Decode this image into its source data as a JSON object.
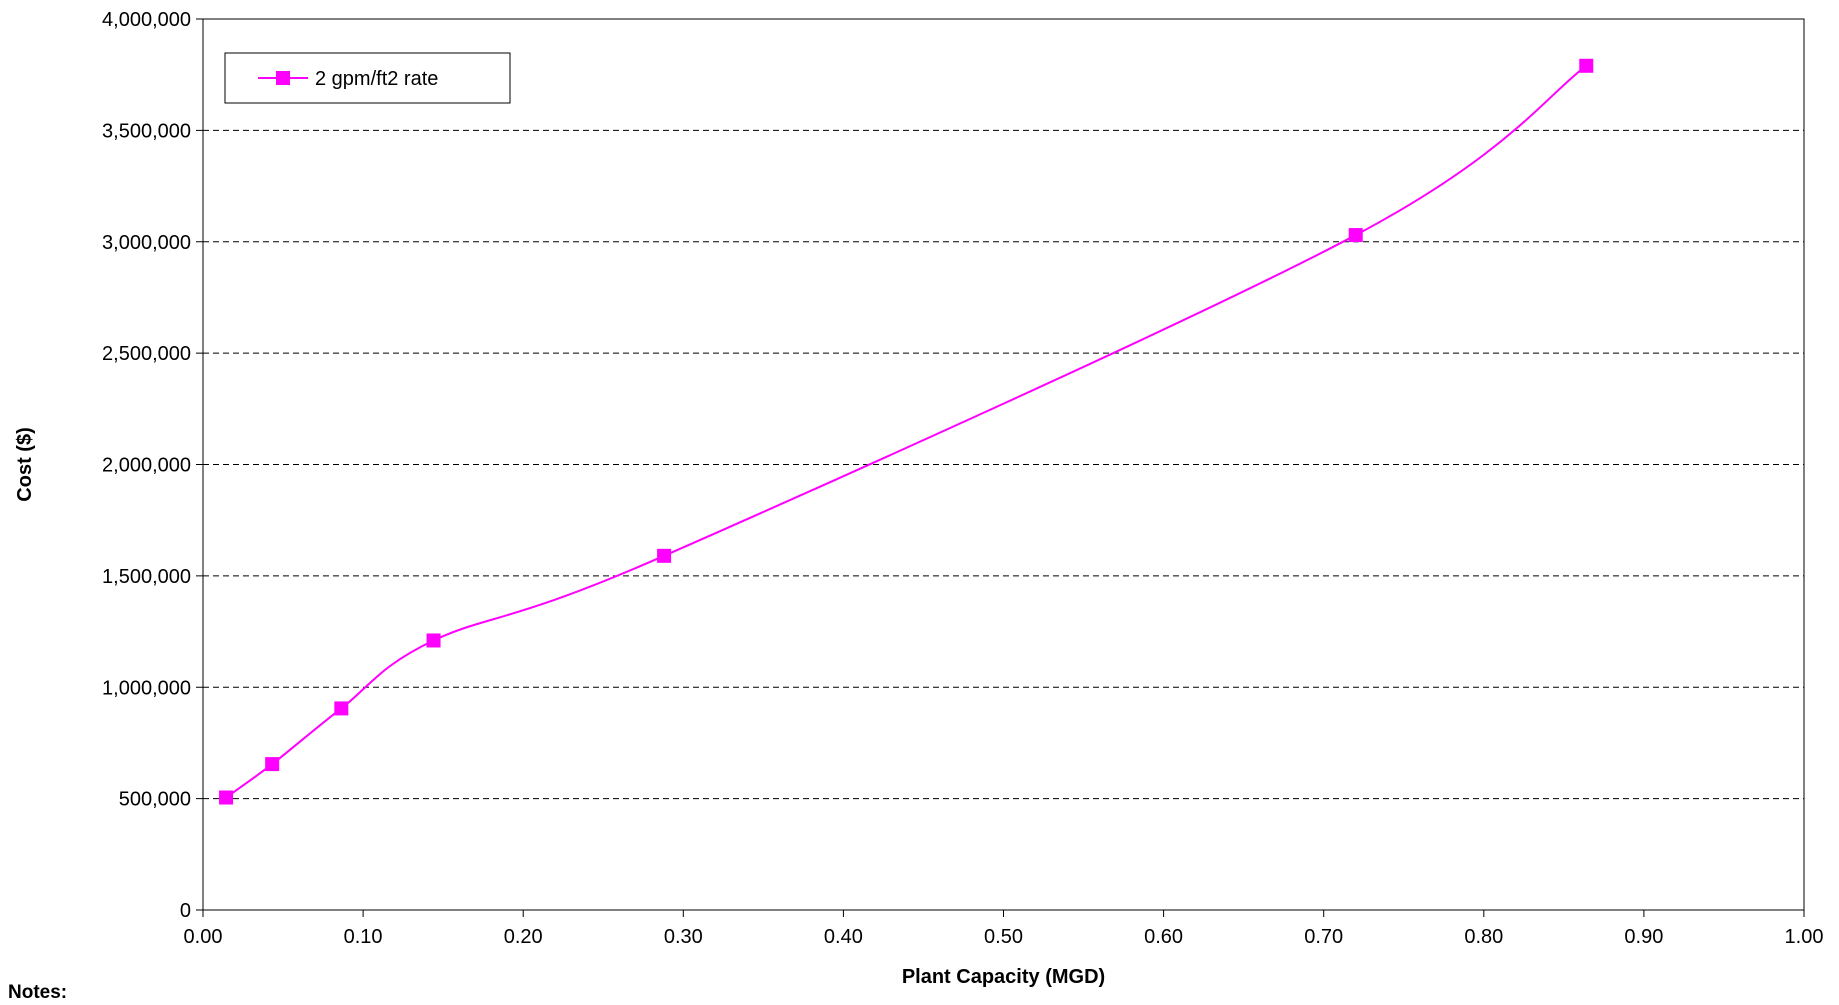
{
  "notes_label": "Notes:",
  "chart_data": {
    "type": "line",
    "title": "",
    "xlabel": "Plant Capacity (MGD)",
    "ylabel": "Cost ($)",
    "xlim": [
      0,
      1.0
    ],
    "ylim": [
      0,
      4000000
    ],
    "x_ticks": [
      "0.00",
      "0.10",
      "0.20",
      "0.30",
      "0.40",
      "0.50",
      "0.60",
      "0.70",
      "0.80",
      "0.90",
      "1.00"
    ],
    "y_ticks": [
      "0",
      "500,000",
      "1,000,000",
      "1,500,000",
      "2,000,000",
      "2,500,000",
      "3,000,000",
      "3,500,000",
      "4,000,000"
    ],
    "grid": "horizontal dashed",
    "legend_position": "top-left",
    "series": [
      {
        "name": "2 gpm/ft2 rate",
        "color": "#FF00FF",
        "marker": "square",
        "smooth": true,
        "x": [
          0.0144,
          0.0432,
          0.0864,
          0.144,
          0.288,
          0.72,
          0.864
        ],
        "y": [
          505000,
          655000,
          905000,
          1210000,
          1590000,
          3030000,
          3790000
        ]
      }
    ]
  }
}
